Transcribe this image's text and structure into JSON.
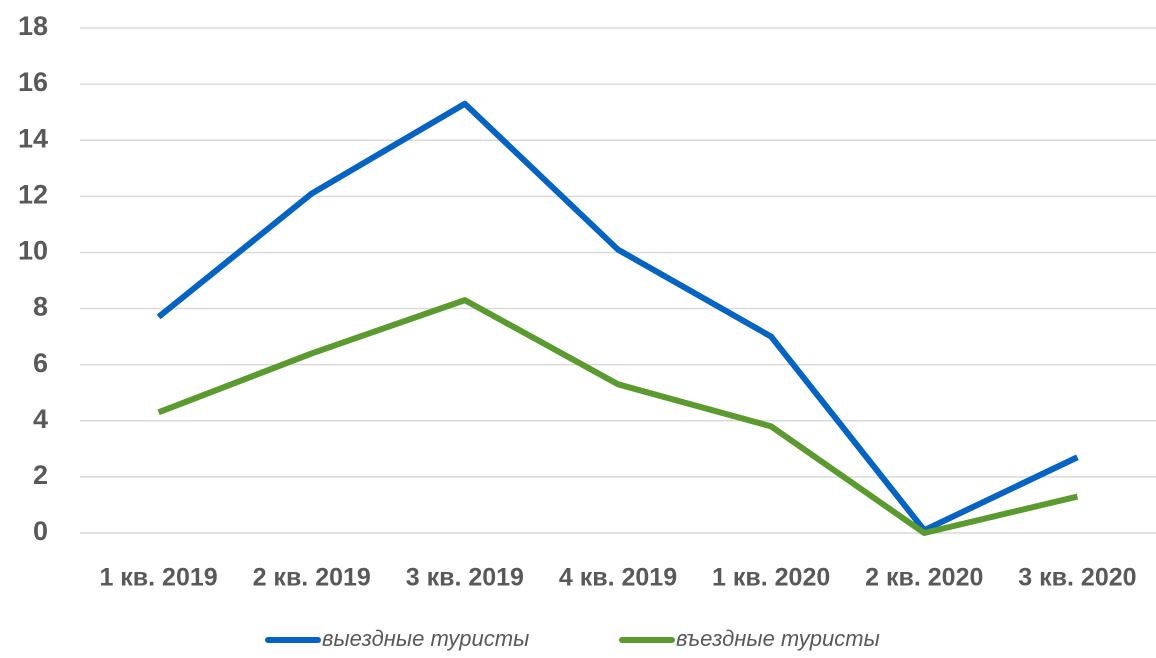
{
  "chart_data": {
    "type": "line",
    "categories": [
      "1 кв. 2019",
      "2 кв. 2019",
      "3 кв. 2019",
      "4 кв. 2019",
      "1 кв. 2020",
      "2 кв. 2020",
      "3 кв. 2020"
    ],
    "series": [
      {
        "name": "выездные туристы",
        "color": "#0563c1",
        "values": [
          7.7,
          12.1,
          15.3,
          10.1,
          7.0,
          0.1,
          2.7
        ]
      },
      {
        "name": "въездные туристы",
        "color": "#5b9a2f",
        "values": [
          4.3,
          6.4,
          8.3,
          5.3,
          3.8,
          0.0,
          1.3
        ]
      }
    ],
    "ylim": [
      0,
      18
    ],
    "yticks": [
      0,
      2,
      4,
      6,
      8,
      10,
      12,
      14,
      16,
      18
    ],
    "grid": true,
    "legend": "bottom"
  }
}
